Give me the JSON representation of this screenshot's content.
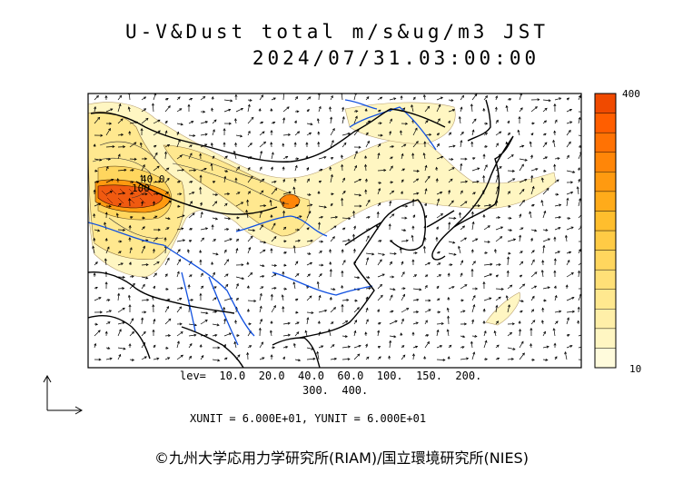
{
  "title": "U-V&Dust total m/s&ug/m3 JST",
  "datetime": "2024/07/31.03:00:00",
  "colorbar": {
    "max_label": "400",
    "min_label": "10",
    "colors": [
      "#fffbdc",
      "#fff6c2",
      "#ffefa8",
      "#ffe88f",
      "#ffe077",
      "#ffd65e",
      "#ffcb45",
      "#ffbe2d",
      "#ffab1a",
      "#ff9a10",
      "#ff8608",
      "#ff7204",
      "#ff5e00",
      "#f04a00"
    ]
  },
  "contour_labels": [
    "40.0",
    "100"
  ],
  "levels_line1": "lev=  10.0  20.0  40.0  60.0  100.  150.  200.",
  "levels_line2": "300.  400.",
  "units_line": "XUNIT = 6.000E+01, YUNIT = 6.000E+01",
  "credit": "©九州大学応用力学研究所(RIAM)/国立環境研究所(NIES)"
}
